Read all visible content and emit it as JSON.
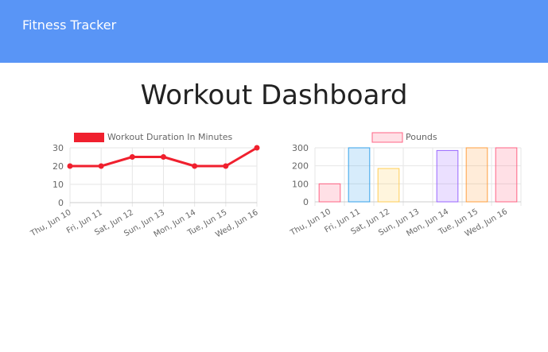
{
  "navbar": {
    "brand": "Fitness Tracker"
  },
  "page": {
    "title": "Workout Dashboard"
  },
  "colors": {
    "navbar": "#5995f6",
    "line": "#f0202e"
  },
  "chart_data": [
    {
      "type": "line",
      "categories": [
        "Thu, Jun 10",
        "Fri, Jun 11",
        "Sat, Jun 12",
        "Sun, Jun 13",
        "Mon, Jun 14",
        "Tue, Jun 15",
        "Wed, Jun 16"
      ],
      "series": [
        {
          "name": "Workout Duration In Minutes",
          "values": [
            20,
            20,
            25,
            25,
            20,
            20,
            30
          ]
        }
      ],
      "ylim": [
        0,
        30
      ],
      "yticks": [
        "0",
        "10",
        "20",
        "30"
      ],
      "grid": true,
      "legend": "top"
    },
    {
      "type": "bar",
      "categories": [
        "Thu, Jun 10",
        "Fri, Jun 11",
        "Sat, Jun 12",
        "Sun, Jun 13",
        "Mon, Jun 14",
        "Tue, Jun 15",
        "Wed, Jun 16"
      ],
      "series": [
        {
          "name": "Pounds",
          "values": [
            100,
            300,
            185,
            0,
            285,
            300,
            300
          ]
        }
      ],
      "ylim": [
        0,
        300
      ],
      "yticks": [
        "0",
        "100",
        "200",
        "300"
      ],
      "bar_colors": [
        "#ff6384",
        "#36a2eb",
        "#ffce56",
        "#4bc0c0",
        "#9966ff",
        "#ff9f40",
        "#ff6384"
      ],
      "grid": true,
      "legend": "top"
    }
  ]
}
